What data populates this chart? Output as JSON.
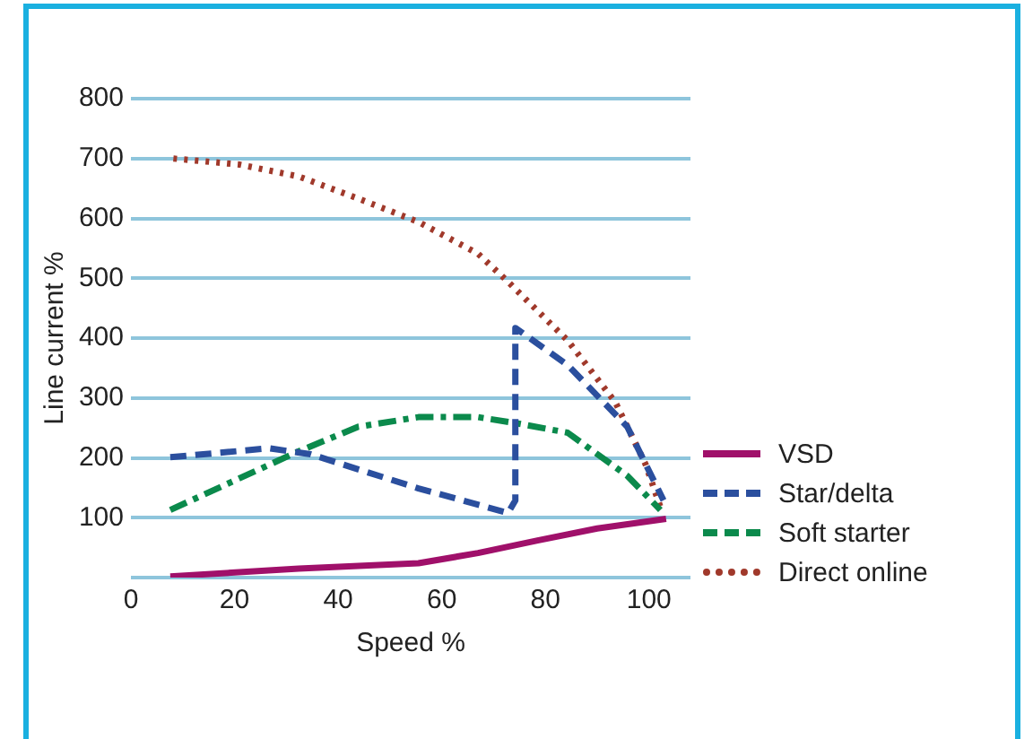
{
  "chart_data": {
    "type": "line",
    "xlabel": "Speed %",
    "ylabel": "Line current %",
    "xlim": [
      0,
      108
    ],
    "xticks": [
      0,
      20,
      40,
      60,
      80,
      100
    ],
    "ylim": [
      0,
      800
    ],
    "yticks": [
      {
        "value": 0,
        "label": null
      },
      100,
      200,
      300,
      400,
      500,
      600,
      700,
      800
    ],
    "grid": "y",
    "legend": "right",
    "marker": "none",
    "series": [
      {
        "name": "VSD",
        "color": "#a0106a",
        "line_style": "solid",
        "x": [
          7.6,
          32.4,
          55.5,
          67,
          78.5,
          90,
          103.3
        ],
        "values": [
          2,
          15,
          24,
          41,
          62,
          82,
          98
        ]
      },
      {
        "name": "Star/delta",
        "color": "#2b4f9e",
        "line_style": "dashed",
        "x": [
          7.6,
          26.6,
          34.7,
          55.5,
          72.8,
          74.2,
          74.2,
          84.3,
          95.8,
          102.8
        ],
        "values": [
          201,
          216,
          206,
          149,
          108,
          129,
          417,
          355,
          252,
          129
        ]
      },
      {
        "name": "Soft starter",
        "color": "#0b8a4c",
        "line_style": "dashdot",
        "x": [
          7.6,
          32.4,
          43.9,
          55.5,
          67,
          75,
          84.3,
          95.8,
          102.2
        ],
        "values": [
          113,
          211,
          252,
          268,
          268,
          257,
          242,
          170,
          113
        ]
      },
      {
        "name": "Direct online",
        "color": "#a0392b",
        "line_style": "dotted",
        "x": [
          8.2,
          20.9,
          32.4,
          43.9,
          55.5,
          67,
          72.8,
          84.3,
          93.5,
          99.3,
          102.2
        ],
        "values": [
          700,
          690,
          670,
          633,
          594,
          541,
          494,
          396,
          293,
          190,
          118
        ]
      }
    ]
  }
}
